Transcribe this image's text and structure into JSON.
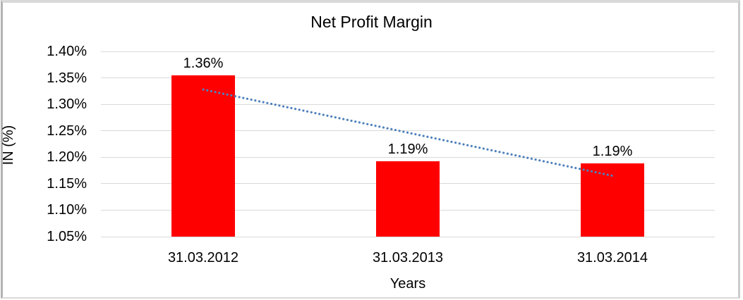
{
  "chart_data": {
    "type": "bar",
    "title": "Net Profit Margin",
    "xlabel": "Years",
    "ylabel": "IN (%)",
    "categories": [
      "31.03.2012",
      "31.03.2013",
      "31.03.2014"
    ],
    "values": [
      1.355,
      1.192,
      1.188
    ],
    "data_labels": [
      "1.36%",
      "1.19%",
      "1.19%"
    ],
    "ylim": [
      1.05,
      1.4
    ],
    "y_tick_step": 0.05,
    "y_ticks": [
      {
        "value": 1.4,
        "label": "1.40%"
      },
      {
        "value": 1.35,
        "label": "1.35%"
      },
      {
        "value": 1.3,
        "label": "1.30%"
      },
      {
        "value": 1.25,
        "label": "1.25%"
      },
      {
        "value": 1.2,
        "label": "1.20%"
      },
      {
        "value": 1.15,
        "label": "1.15%"
      },
      {
        "value": 1.1,
        "label": "1.10%"
      },
      {
        "value": 1.05,
        "label": "1.05%"
      }
    ],
    "grid": true,
    "legend": "none",
    "bar_color": "#ff0000",
    "gridline_color": "#d9d9d9",
    "text_color": "#000000",
    "trendline": {
      "style": "dotted",
      "color": "#4e81bd",
      "start": {
        "category_index": 0,
        "value": 1.328
      },
      "end": {
        "category_index": 2,
        "value": 1.165
      }
    }
  },
  "frame": {
    "border_color": "#d9d9d9"
  }
}
